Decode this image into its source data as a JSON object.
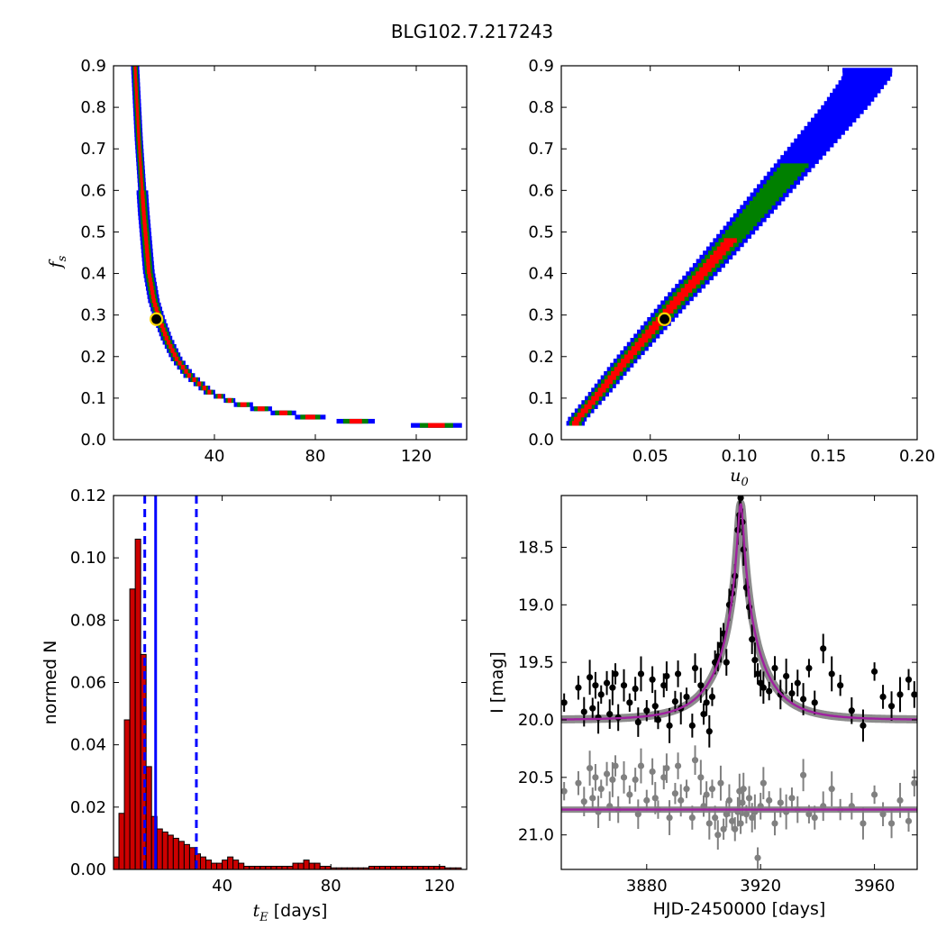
{
  "suptitle": "BLG102.7.217243",
  "colors": {
    "outer": "#0000ff",
    "mid": "#008000",
    "inner": "#ff0000",
    "core": "#000000",
    "best_marker": "#ffd700",
    "hist_bar": "#cc0000",
    "vline": "#0000ff",
    "model": "#a020a0",
    "data_top": "#000000",
    "data_bottom": "#808080"
  },
  "chart_data": [
    {
      "type": "heatmap",
      "panel": "top-left",
      "xlabel": "",
      "ylabel": "f_s",
      "ylabel_symbol": "f",
      "ylabel_sub": "s",
      "xlim": [
        0,
        140
      ],
      "ylim": [
        0,
        0.9
      ],
      "xticks": [
        40,
        80,
        120
      ],
      "yticks": [
        "0.0",
        "0.1",
        "0.2",
        "0.3",
        "0.4",
        "0.5",
        "0.6",
        "0.7",
        "0.8",
        "0.9"
      ],
      "ridge_tE": [
        8.5,
        10,
        12,
        14,
        16,
        18,
        21,
        25,
        30,
        38,
        48,
        62,
        78,
        96,
        115,
        128
      ],
      "ridge_fs": [
        0.9,
        0.72,
        0.54,
        0.4,
        0.33,
        0.29,
        0.24,
        0.19,
        0.15,
        0.11,
        0.085,
        0.065,
        0.05,
        0.04,
        0.035,
        0.033
      ],
      "best_fit": {
        "tE": 17,
        "fs": 0.29
      }
    },
    {
      "type": "heatmap",
      "panel": "top-right",
      "xlabel": "u_0",
      "xlabel_symbol": "u",
      "xlabel_sub": "0",
      "ylabel": "",
      "xlim": [
        0,
        0.2
      ],
      "ylim": [
        0,
        0.9
      ],
      "xticks": [
        "0.05",
        "0.10",
        "0.15",
        "0.20"
      ],
      "yticks": [
        "0.0",
        "0.1",
        "0.2",
        "0.3",
        "0.4",
        "0.5",
        "0.6",
        "0.7",
        "0.8",
        "0.9"
      ],
      "ridge_u0": [
        0.008,
        0.02,
        0.035,
        0.05,
        0.065,
        0.08,
        0.1,
        0.12,
        0.14,
        0.16,
        0.172
      ],
      "ridge_fs": [
        0.04,
        0.1,
        0.18,
        0.255,
        0.33,
        0.4,
        0.5,
        0.6,
        0.7,
        0.8,
        0.87
      ],
      "best_fit": {
        "u0": 0.058,
        "fs": 0.29
      }
    },
    {
      "type": "bar",
      "panel": "bottom-left",
      "xlabel": "t_E [days]",
      "xlabel_symbol": "t",
      "xlabel_sub": "E",
      "xlabel_unit": "[days]",
      "ylabel": "normed N",
      "xlim": [
        0,
        130
      ],
      "ylim": [
        0,
        0.12
      ],
      "xticks": [
        40,
        80,
        120
      ],
      "yticks": [
        "0.00",
        "0.02",
        "0.04",
        "0.06",
        "0.08",
        "0.10",
        "0.12"
      ],
      "bin_start": 0,
      "bin_width": 2,
      "values": [
        0.004,
        0.018,
        0.048,
        0.09,
        0.106,
        0.069,
        0.033,
        0.017,
        0.013,
        0.012,
        0.011,
        0.01,
        0.009,
        0.008,
        0.007,
        0.005,
        0.004,
        0.003,
        0.002,
        0.002,
        0.003,
        0.004,
        0.003,
        0.002,
        0.001,
        0.001,
        0.001,
        0.001,
        0.001,
        0.001,
        0.001,
        0.001,
        0.001,
        0.002,
        0.002,
        0.003,
        0.002,
        0.002,
        0.001,
        0.001,
        0.0005,
        0.0005,
        0.0005,
        0.0005,
        0.0005,
        0.0005,
        0.0005,
        0.001,
        0.001,
        0.001,
        0.001,
        0.001,
        0.001,
        0.001,
        0.001,
        0.001,
        0.001,
        0.001,
        0.001,
        0.001,
        0.001,
        0.0005,
        0.0005,
        0.0005
      ],
      "median": 15.5,
      "interval": [
        11.5,
        30.5
      ]
    },
    {
      "type": "scatter",
      "panel": "bottom-right",
      "xlabel": "HJD-2450000 [days]",
      "ylabel": "I [mag]",
      "xlim": [
        3850,
        3975
      ],
      "ylim": [
        21.3,
        18.05
      ],
      "y_inverted": true,
      "xticks": [
        3880,
        3920,
        3960
      ],
      "yticks": [
        "18.5",
        "19.0",
        "19.5",
        "20.0",
        "20.5",
        "21.0"
      ],
      "model_top": {
        "baseline": 20.0,
        "peak_mag": 18.12,
        "t0": 3913.0,
        "tE": 15.5,
        "u0": 0.058
      },
      "model_bottom": {
        "level": 20.78
      },
      "series": [
        {
          "name": "",
          "offset": 0,
          "color": "data_top",
          "x": [
            3851,
            3856,
            3858,
            3860,
            3861,
            3862,
            3863,
            3864,
            3866,
            3867,
            3868,
            3869,
            3870,
            3872,
            3874,
            3876,
            3877,
            3878,
            3880,
            3882,
            3883,
            3884,
            3886,
            3887,
            3888,
            3890,
            3891,
            3892,
            3894,
            3896,
            3897,
            3899,
            3900,
            3901,
            3902,
            3903,
            3904,
            3905,
            3906,
            3907,
            3908,
            3909,
            3910,
            3911,
            3912,
            3912.6,
            3913,
            3913.6,
            3914,
            3915,
            3916,
            3917,
            3918,
            3919,
            3920,
            3921,
            3923,
            3925,
            3927,
            3929,
            3931,
            3933,
            3935,
            3937,
            3939,
            3942,
            3945,
            3948,
            3952,
            3956,
            3960,
            3963,
            3966,
            3969,
            3972,
            3974
          ],
          "y": [
            19.85,
            19.72,
            19.93,
            19.63,
            19.9,
            19.7,
            19.98,
            19.78,
            19.68,
            19.95,
            19.72,
            19.6,
            19.98,
            19.7,
            19.85,
            19.73,
            20.02,
            19.6,
            19.92,
            19.65,
            19.88,
            20.0,
            19.7,
            19.62,
            20.05,
            19.84,
            19.6,
            19.9,
            19.8,
            20.05,
            19.55,
            19.7,
            19.95,
            19.85,
            20.1,
            19.8,
            19.5,
            19.45,
            19.35,
            19.25,
            19.5,
            19.0,
            18.9,
            18.75,
            18.35,
            18.22,
            18.07,
            18.28,
            18.52,
            18.85,
            19.02,
            19.3,
            19.48,
            19.6,
            19.68,
            19.72,
            19.75,
            19.55,
            19.78,
            19.62,
            19.77,
            19.68,
            19.82,
            19.55,
            19.85,
            19.38,
            19.6,
            19.7,
            19.92,
            20.05,
            19.58,
            19.8,
            19.88,
            19.78,
            19.65,
            19.78
          ]
        },
        {
          "name": "",
          "offset": 0.78,
          "color": "data_bottom",
          "x": [
            3851,
            3856,
            3858,
            3860,
            3861,
            3862,
            3863,
            3864,
            3866,
            3867,
            3868,
            3869,
            3870,
            3872,
            3874,
            3876,
            3877,
            3878,
            3880,
            3882,
            3883,
            3884,
            3886,
            3887,
            3888,
            3890,
            3891,
            3892,
            3894,
            3896,
            3897,
            3899,
            3900,
            3901,
            3902,
            3903,
            3904,
            3905,
            3906,
            3907,
            3908,
            3909,
            3910,
            3911,
            3912,
            3912.6,
            3913,
            3913.6,
            3914,
            3915,
            3916,
            3917,
            3918,
            3919,
            3920,
            3921,
            3923,
            3925,
            3927,
            3929,
            3931,
            3933,
            3935,
            3937,
            3939,
            3942,
            3945,
            3948,
            3952,
            3956,
            3960,
            3963,
            3966,
            3969,
            3972,
            3974
          ],
          "y": [
            20.62,
            20.55,
            20.71,
            20.42,
            20.68,
            20.5,
            20.8,
            20.6,
            20.47,
            20.75,
            20.52,
            20.4,
            20.78,
            20.5,
            20.65,
            20.52,
            20.82,
            20.4,
            20.7,
            20.45,
            20.68,
            20.78,
            20.5,
            20.42,
            20.85,
            20.64,
            20.4,
            20.7,
            20.6,
            20.85,
            20.35,
            20.5,
            20.75,
            20.65,
            20.9,
            20.6,
            20.85,
            21.0,
            20.55,
            20.95,
            20.82,
            20.7,
            20.88,
            20.95,
            20.8,
            20.62,
            20.9,
            20.72,
            20.6,
            20.82,
            20.68,
            20.85,
            20.8,
            21.2,
            20.75,
            20.55,
            20.7,
            20.9,
            20.72,
            20.8,
            20.68,
            20.78,
            20.48,
            20.82,
            20.85,
            20.75,
            20.6,
            20.78,
            20.75,
            20.9,
            20.65,
            20.82,
            20.9,
            20.7,
            20.88,
            20.55
          ]
        }
      ]
    }
  ]
}
